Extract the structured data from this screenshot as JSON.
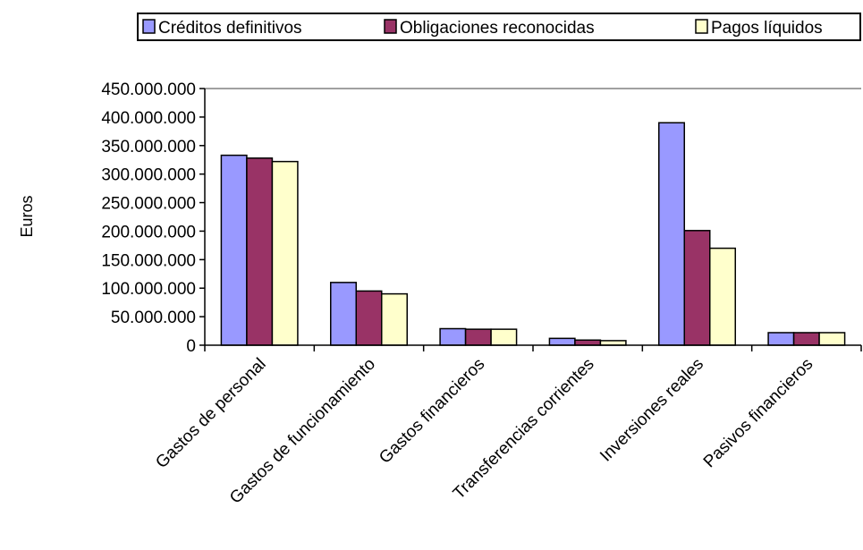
{
  "chart_data": {
    "type": "bar",
    "title": "",
    "xlabel": "",
    "ylabel": "Euros",
    "ylim": [
      0,
      450000000
    ],
    "y_ticks": [
      "0",
      "50.000.000",
      "100.000.000",
      "150.000.000",
      "200.000.000",
      "250.000.000",
      "300.000.000",
      "350.000.000",
      "400.000.000",
      "450.000.000"
    ],
    "grid": "top line only",
    "legend_position": "top",
    "categories": [
      "Gastos de personal",
      "Gastos de funcionamiento",
      "Gastos financieros",
      "Transferencias corrientes",
      "Inversiones reales",
      "Pasivos financieros"
    ],
    "series": [
      {
        "name": "Créditos definitivos",
        "color": "#9999ff",
        "values": [
          333000000,
          110000000,
          29000000,
          12000000,
          390000000,
          22000000
        ]
      },
      {
        "name": "Obligaciones reconocidas",
        "color": "#993366",
        "values": [
          328000000,
          95000000,
          28000000,
          9000000,
          201000000,
          22000000
        ]
      },
      {
        "name": "Pagos líquidos",
        "color": "#ffffcc",
        "values": [
          322000000,
          90000000,
          28000000,
          8000000,
          170000000,
          22000000
        ]
      }
    ]
  }
}
